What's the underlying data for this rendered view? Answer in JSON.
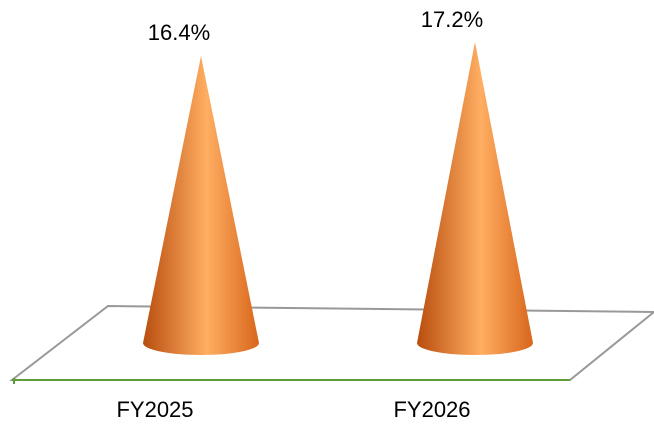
{
  "chart_data": {
    "type": "bar",
    "shape": "cone",
    "categories": [
      "FY2025",
      "FY2026"
    ],
    "values": [
      16.4,
      17.2
    ],
    "value_labels": [
      "16.4%",
      "17.2%"
    ],
    "unit": "%",
    "ylim": [
      0,
      17.2
    ],
    "grid": false,
    "legend": "none",
    "colors": {
      "cone_dark": "#b84d0e",
      "cone_mid": "#f08a33",
      "cone_light": "#ffb066",
      "floor_edge": "#999999",
      "axis_line": "#5e9e3a"
    }
  }
}
